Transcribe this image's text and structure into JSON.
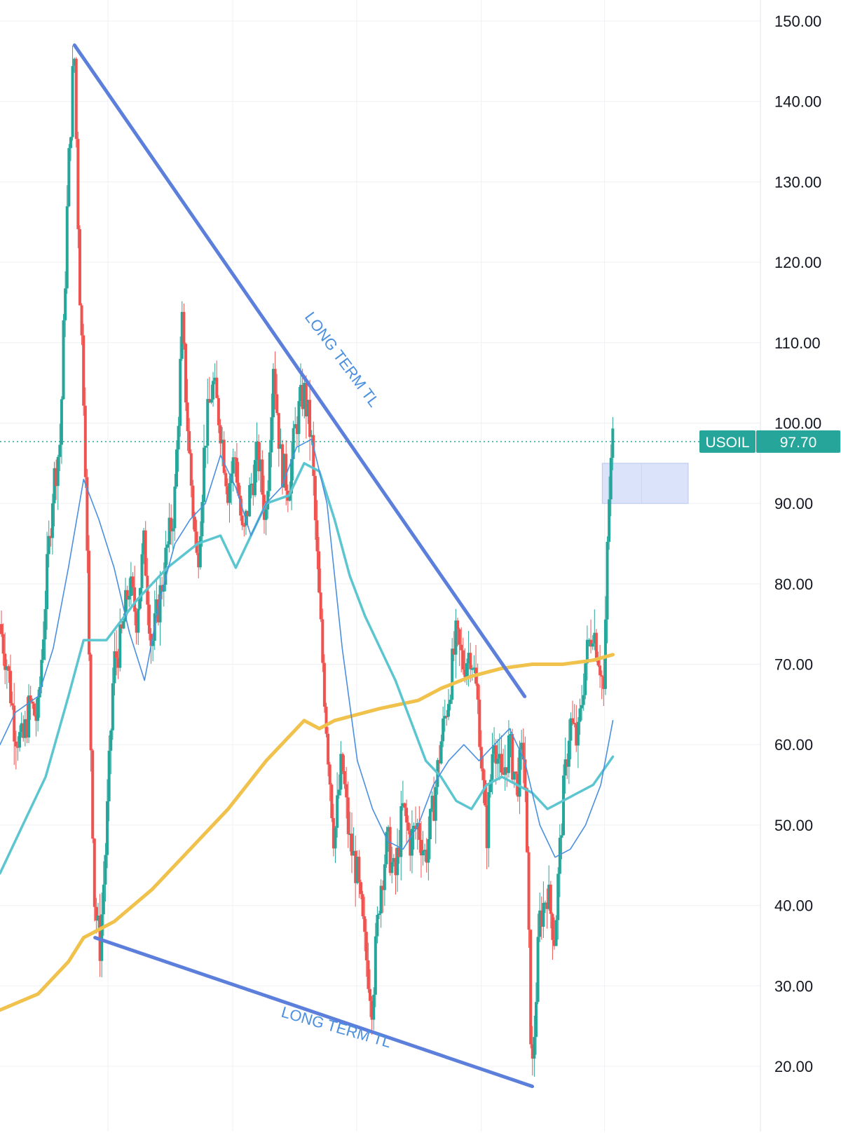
{
  "chart_data": {
    "type": "candlestick",
    "symbol": "USOIL",
    "last_price": "97.70",
    "y_axis": {
      "min": 13,
      "max": 153,
      "ticks": [
        "150.00",
        "140.00",
        "130.00",
        "120.00",
        "110.00",
        "100.00",
        "90.00",
        "80.00",
        "70.00",
        "60.00",
        "50.00",
        "40.00",
        "30.00",
        "20.00"
      ]
    },
    "grid": true,
    "colors": {
      "up": "#26a69a",
      "down": "#ef5350",
      "trendline": "#5b7fdb",
      "ma_fast": "#4a8fe0",
      "ma_mid": "#5bc5d0",
      "ma_slow": "#f0c14b",
      "last_price": "#26a69a",
      "zone": "#dbe3fb"
    },
    "annotations": [
      {
        "text": "LONG TERM TL",
        "kind": "upper-trendline-label"
      },
      {
        "text": "LONG TERM TL",
        "kind": "lower-trendline-label"
      }
    ],
    "trendlines": [
      {
        "name": "upper",
        "points": [
          [
            0.098,
            147
          ],
          [
            0.69,
            66
          ]
        ]
      },
      {
        "name": "lower",
        "points": [
          [
            0.125,
            36
          ],
          [
            0.7,
            17.5
          ]
        ]
      }
    ],
    "zone": {
      "x_from": 0.792,
      "x_to": 0.905,
      "y_from": 90,
      "y_to": 95
    },
    "price_path": [
      [
        0.0,
        75
      ],
      [
        0.01,
        70
      ],
      [
        0.02,
        62
      ],
      [
        0.03,
        60
      ],
      [
        0.04,
        65
      ],
      [
        0.05,
        63
      ],
      [
        0.06,
        78
      ],
      [
        0.07,
        92
      ],
      [
        0.08,
        98
      ],
      [
        0.09,
        130
      ],
      [
        0.098,
        147
      ],
      [
        0.105,
        118
      ],
      [
        0.112,
        100
      ],
      [
        0.118,
        68
      ],
      [
        0.125,
        40
      ],
      [
        0.132,
        35
      ],
      [
        0.14,
        48
      ],
      [
        0.15,
        70
      ],
      [
        0.16,
        73
      ],
      [
        0.17,
        80
      ],
      [
        0.18,
        76
      ],
      [
        0.19,
        85
      ],
      [
        0.2,
        72
      ],
      [
        0.21,
        78
      ],
      [
        0.22,
        84
      ],
      [
        0.23,
        90
      ],
      [
        0.24,
        112
      ],
      [
        0.25,
        95
      ],
      [
        0.26,
        82
      ],
      [
        0.27,
        98
      ],
      [
        0.28,
        105
      ],
      [
        0.29,
        100
      ],
      [
        0.3,
        92
      ],
      [
        0.31,
        96
      ],
      [
        0.32,
        85
      ],
      [
        0.33,
        92
      ],
      [
        0.34,
        96
      ],
      [
        0.35,
        88
      ],
      [
        0.36,
        108
      ],
      [
        0.37,
        95
      ],
      [
        0.38,
        92
      ],
      [
        0.39,
        100
      ],
      [
        0.4,
        104
      ],
      [
        0.41,
        98
      ],
      [
        0.42,
        78
      ],
      [
        0.43,
        62
      ],
      [
        0.44,
        48
      ],
      [
        0.45,
        58
      ],
      [
        0.46,
        48
      ],
      [
        0.47,
        44
      ],
      [
        0.48,
        35
      ],
      [
        0.49,
        28
      ],
      [
        0.5,
        42
      ],
      [
        0.51,
        48
      ],
      [
        0.52,
        43
      ],
      [
        0.53,
        52
      ],
      [
        0.54,
        48
      ],
      [
        0.55,
        50
      ],
      [
        0.56,
        46
      ],
      [
        0.57,
        52
      ],
      [
        0.58,
        60
      ],
      [
        0.59,
        66
      ],
      [
        0.6,
        73
      ],
      [
        0.61,
        70
      ],
      [
        0.62,
        72
      ],
      [
        0.63,
        64
      ],
      [
        0.64,
        48
      ],
      [
        0.65,
        62
      ],
      [
        0.66,
        55
      ],
      [
        0.67,
        60
      ],
      [
        0.68,
        55
      ],
      [
        0.69,
        60
      ],
      [
        0.7,
        18
      ],
      [
        0.71,
        38
      ],
      [
        0.72,
        42
      ],
      [
        0.73,
        36
      ],
      [
        0.74,
        52
      ],
      [
        0.75,
        63
      ],
      [
        0.76,
        60
      ],
      [
        0.77,
        70
      ],
      [
        0.78,
        75
      ],
      [
        0.79,
        70
      ],
      [
        0.795,
        66
      ],
      [
        0.8,
        88
      ],
      [
        0.806,
        98
      ]
    ],
    "ma_slow": [
      [
        0.0,
        27
      ],
      [
        0.05,
        29
      ],
      [
        0.09,
        33
      ],
      [
        0.11,
        36
      ],
      [
        0.15,
        38
      ],
      [
        0.2,
        42
      ],
      [
        0.25,
        47
      ],
      [
        0.3,
        52
      ],
      [
        0.35,
        58
      ],
      [
        0.4,
        63
      ],
      [
        0.42,
        62
      ],
      [
        0.44,
        63
      ],
      [
        0.5,
        64.5
      ],
      [
        0.55,
        65.5
      ],
      [
        0.58,
        67
      ],
      [
        0.62,
        68.5
      ],
      [
        0.66,
        69.5
      ],
      [
        0.7,
        70
      ],
      [
        0.74,
        70
      ],
      [
        0.78,
        70.5
      ],
      [
        0.806,
        71.2
      ]
    ],
    "ma_mid": [
      [
        0.0,
        44
      ],
      [
        0.03,
        50
      ],
      [
        0.06,
        56
      ],
      [
        0.09,
        66
      ],
      [
        0.11,
        73
      ],
      [
        0.14,
        73
      ],
      [
        0.18,
        78
      ],
      [
        0.22,
        82
      ],
      [
        0.26,
        85
      ],
      [
        0.29,
        86
      ],
      [
        0.31,
        82
      ],
      [
        0.33,
        86
      ],
      [
        0.35,
        90
      ],
      [
        0.38,
        91
      ],
      [
        0.4,
        95
      ],
      [
        0.42,
        94
      ],
      [
        0.44,
        88
      ],
      [
        0.46,
        81
      ],
      [
        0.48,
        76
      ],
      [
        0.5,
        72
      ],
      [
        0.52,
        68
      ],
      [
        0.54,
        63
      ],
      [
        0.56,
        58
      ],
      [
        0.58,
        56
      ],
      [
        0.6,
        53
      ],
      [
        0.62,
        52
      ],
      [
        0.64,
        55
      ],
      [
        0.66,
        56
      ],
      [
        0.68,
        55
      ],
      [
        0.7,
        54
      ],
      [
        0.72,
        52
      ],
      [
        0.74,
        53
      ],
      [
        0.76,
        54
      ],
      [
        0.78,
        55
      ],
      [
        0.806,
        58.5
      ]
    ],
    "ma_fast": [
      [
        0.0,
        60
      ],
      [
        0.02,
        64
      ],
      [
        0.05,
        66
      ],
      [
        0.07,
        72
      ],
      [
        0.09,
        82
      ],
      [
        0.11,
        93
      ],
      [
        0.13,
        88
      ],
      [
        0.15,
        82
      ],
      [
        0.17,
        74
      ],
      [
        0.19,
        68
      ],
      [
        0.21,
        78
      ],
      [
        0.23,
        85
      ],
      [
        0.25,
        88
      ],
      [
        0.27,
        90
      ],
      [
        0.29,
        96
      ],
      [
        0.31,
        92
      ],
      [
        0.33,
        86
      ],
      [
        0.35,
        90
      ],
      [
        0.37,
        92
      ],
      [
        0.39,
        97
      ],
      [
        0.41,
        98
      ],
      [
        0.43,
        90
      ],
      [
        0.45,
        72
      ],
      [
        0.47,
        58
      ],
      [
        0.49,
        52
      ],
      [
        0.51,
        48
      ],
      [
        0.53,
        47
      ],
      [
        0.55,
        50
      ],
      [
        0.57,
        55
      ],
      [
        0.59,
        58
      ],
      [
        0.61,
        60
      ],
      [
        0.63,
        58
      ],
      [
        0.65,
        60
      ],
      [
        0.67,
        62
      ],
      [
        0.69,
        58
      ],
      [
        0.71,
        50
      ],
      [
        0.73,
        46
      ],
      [
        0.75,
        47
      ],
      [
        0.77,
        50
      ],
      [
        0.79,
        55
      ],
      [
        0.806,
        63
      ]
    ]
  }
}
